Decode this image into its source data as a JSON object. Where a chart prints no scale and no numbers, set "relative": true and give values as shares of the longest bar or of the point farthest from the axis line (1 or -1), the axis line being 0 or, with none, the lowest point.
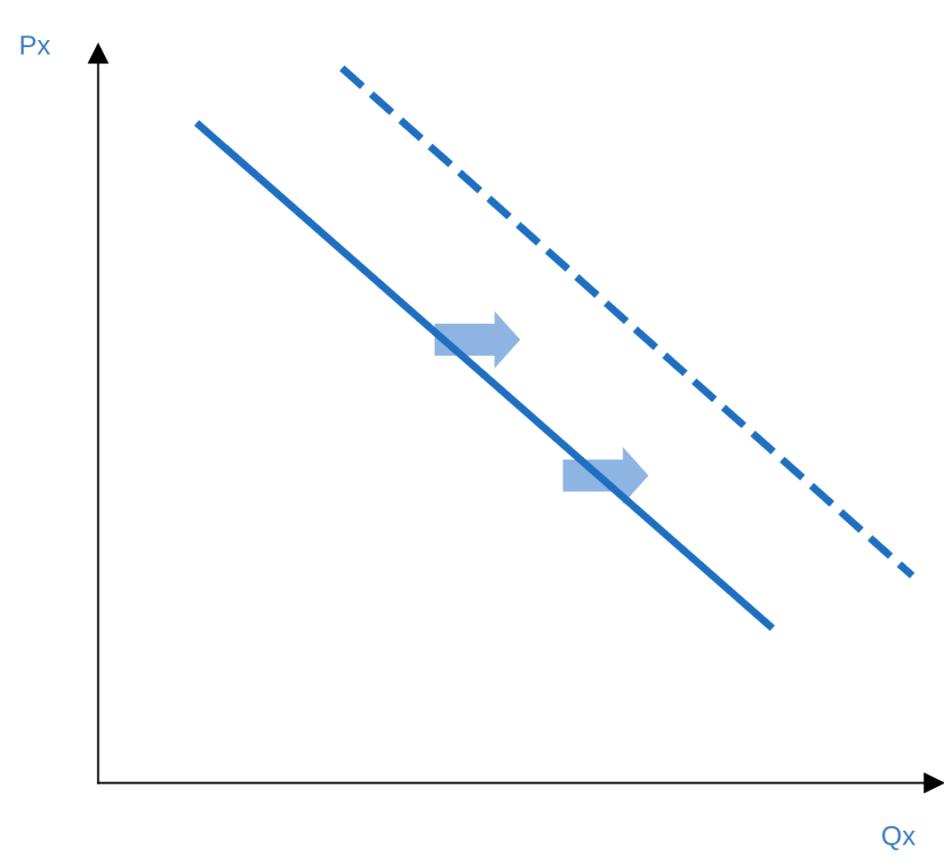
{
  "chart_data": {
    "type": "line",
    "relative": true,
    "xlabel": "Qx",
    "ylabel": "Px",
    "categories": [
      null,
      null,
      null,
      null,
      null,
      null
    ],
    "series": [
      {
        "color": "#1f6fc0",
        "line_style": "solid",
        "values": [
          0.92,
          0.745,
          0.57,
          0.395,
          0.22,
          null
        ]
      },
      {
        "color": "#1f6fc0",
        "line_style": "dashed",
        "values": [
          null,
          1.0,
          0.823,
          0.645,
          0.468,
          0.29
        ]
      }
    ],
    "marker": "none"
  }
}
